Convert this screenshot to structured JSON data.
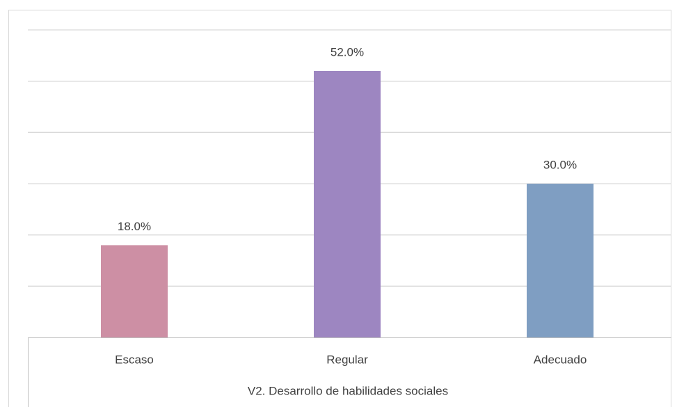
{
  "chart_data": {
    "type": "bar",
    "categories": [
      "Escaso",
      "Regular",
      "Adecuado"
    ],
    "values": [
      18,
      52,
      30
    ],
    "value_labels": [
      "18.0%",
      "52.0%",
      "30.0%"
    ],
    "colors": [
      "#cd8fa4",
      "#9d86c1",
      "#7f9ec2"
    ],
    "x_label": "V2. Desarrollo de habilidades sociales",
    "ylim": [
      0,
      60
    ],
    "yticks": [
      0,
      10,
      20,
      30,
      40,
      50,
      60
    ],
    "grid": true
  }
}
